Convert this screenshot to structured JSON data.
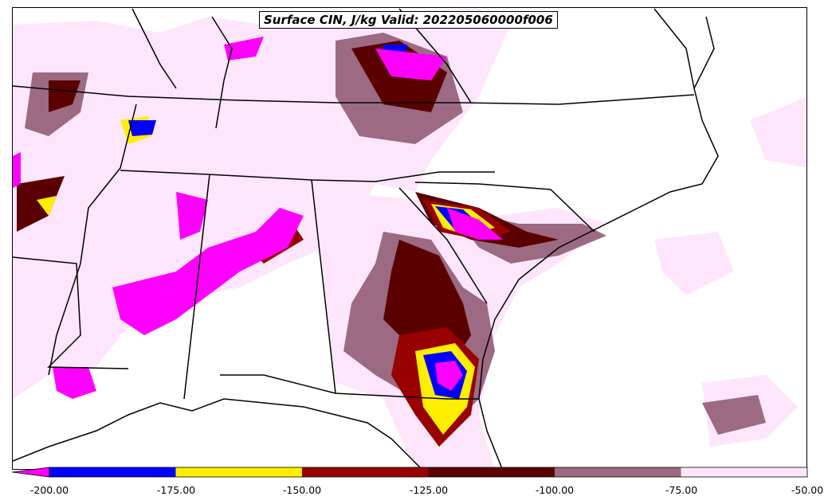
{
  "title": "Surface CIN, J/kg Valid: 202205060000f006",
  "colorbar": {
    "ticks": [
      "-200.00",
      "-175.00",
      "-150.00",
      "-125.00",
      "-100.00",
      "-75.00",
      "-50.00"
    ],
    "colors": [
      "#ff00ff",
      "#0000ff",
      "#ffee00",
      "#990000",
      "#5a0000",
      "#9c6a82",
      "#fde6fb"
    ]
  }
}
